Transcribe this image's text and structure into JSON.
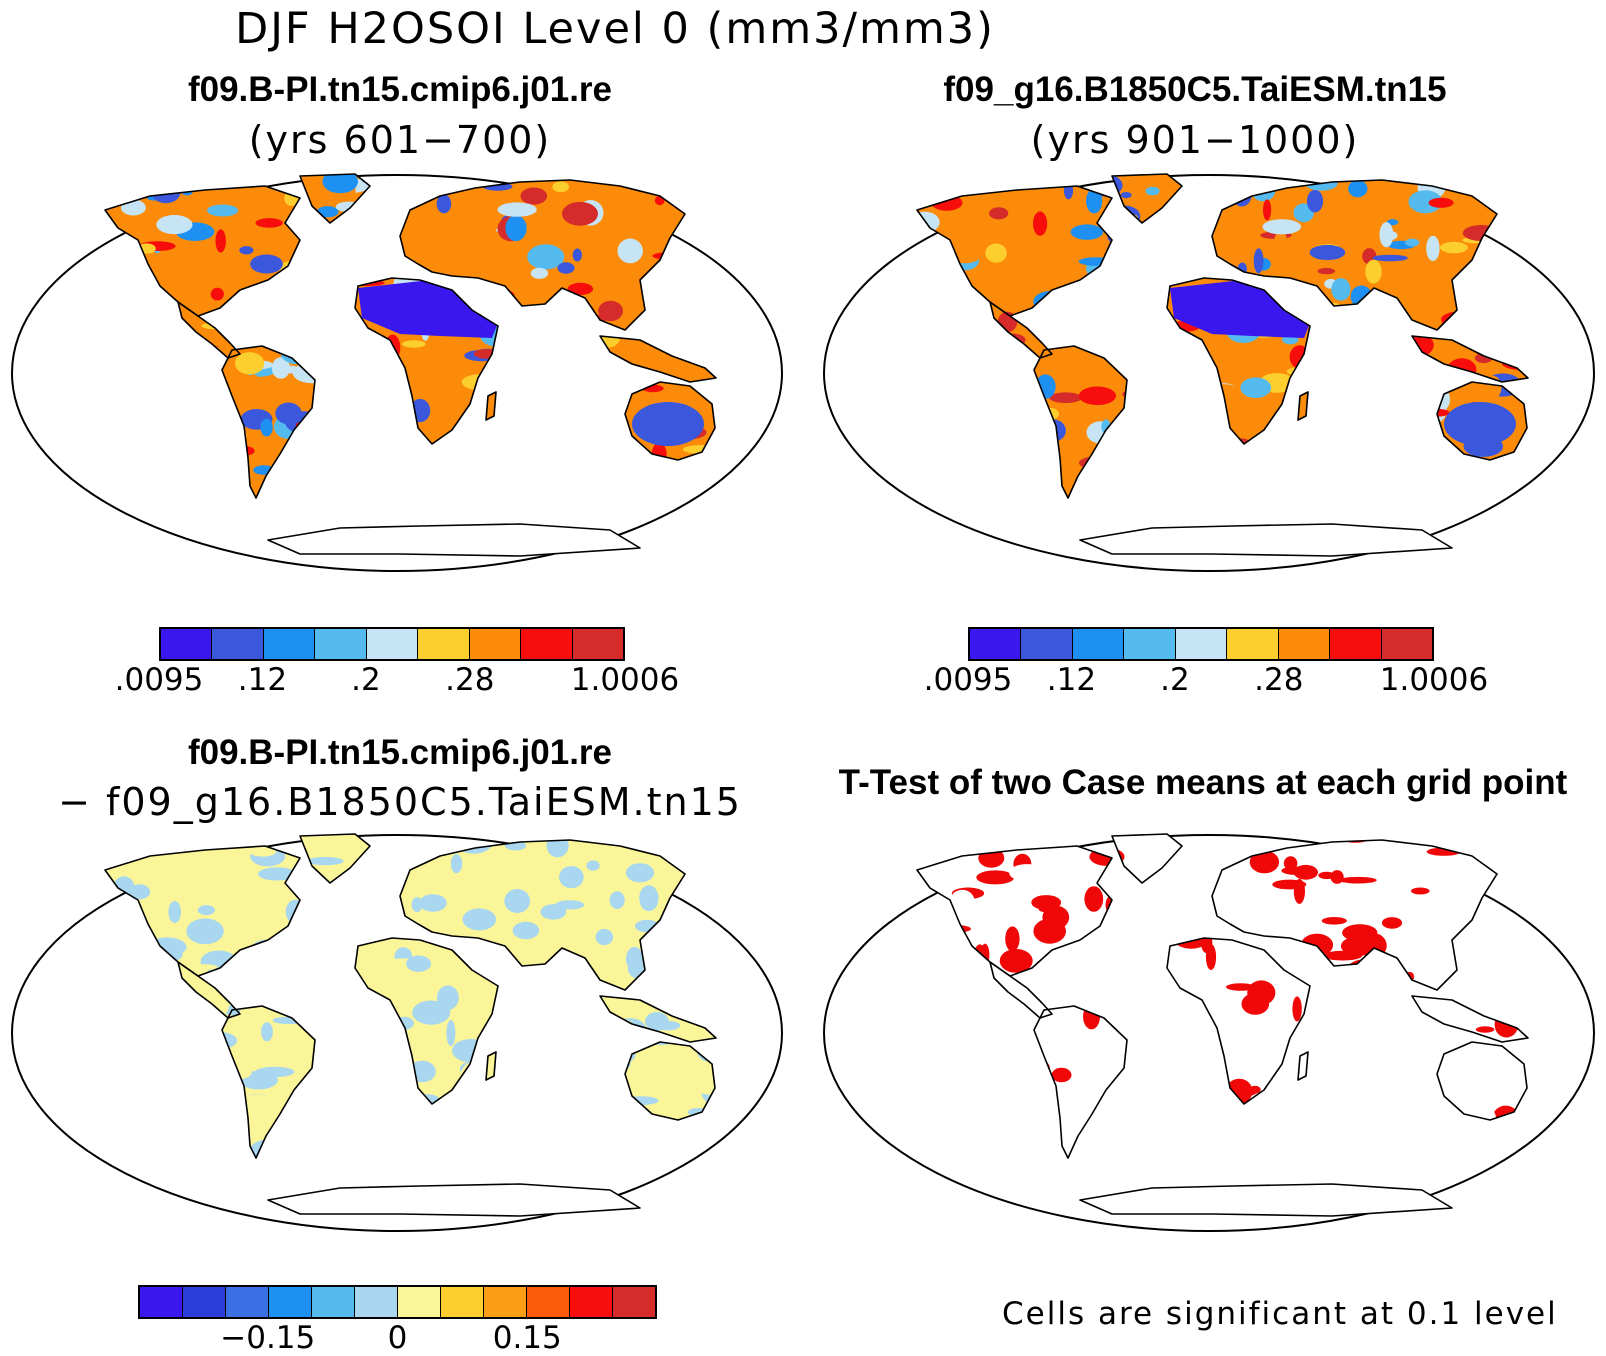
{
  "title": "DJF H2OSOI Level 0 (mm3/mm3)",
  "panels": [
    {
      "title": "f09.B-PI.tn15.cmip6.j01.re",
      "subtitle": "(yrs 601−700)",
      "style": "field_a"
    },
    {
      "title": "f09_g16.B1850C5.TaiESM.tn15",
      "subtitle": "(yrs 901−1000)",
      "style": "field_b"
    },
    {
      "title": "f09.B-PI.tn15.cmip6.j01.re",
      "subtitle": "− f09_g16.B1850C5.TaiESM.tn15",
      "style": "diff"
    },
    {
      "title": "T-Test of two Case means at each grid point",
      "subtitle": "",
      "style": "ttest"
    }
  ],
  "colorbars": [
    {
      "colors": [
        "#3a17ef",
        "#3b58dd",
        "#1e90f2",
        "#55bbef",
        "#c7e4f4",
        "#fccf2f",
        "#fb8b08",
        "#f80d0d",
        "#d62b2b"
      ],
      "labels": [
        ".0095",
        ".12",
        ".2",
        ".28",
        "1.0006"
      ],
      "label_positions": [
        0,
        0.222,
        0.444,
        0.667,
        1.0
      ]
    },
    {
      "colors": [
        "#3a17ef",
        "#3b58dd",
        "#1e90f2",
        "#55bbef",
        "#c7e4f4",
        "#fccf2f",
        "#fb8b08",
        "#f80d0d",
        "#d62b2b"
      ],
      "labels": [
        ".0095",
        ".12",
        ".2",
        ".28",
        "1.0006"
      ],
      "label_positions": [
        0,
        0.222,
        0.444,
        0.667,
        1.0
      ]
    },
    {
      "colors": [
        "#3a17ef",
        "#2b3fd8",
        "#3b6fe4",
        "#1e90f2",
        "#55bbef",
        "#a8d7ef",
        "#fbf59a",
        "#fccf2f",
        "#fb9e16",
        "#fb5a08",
        "#f80d0d",
        "#d62b2b"
      ],
      "labels": [
        "−0.15",
        "0",
        "0.15"
      ],
      "label_positions": [
        0.25,
        0.5,
        0.75
      ]
    }
  ],
  "note": "Cells are significant at 0.1 level",
  "colors": {
    "land_dry": "#3a17ef",
    "land_wet": "#d62b2b",
    "diff_pos": "#fbf59a",
    "diff_neg": "#a8d7ef",
    "significant": "#f00808"
  }
}
